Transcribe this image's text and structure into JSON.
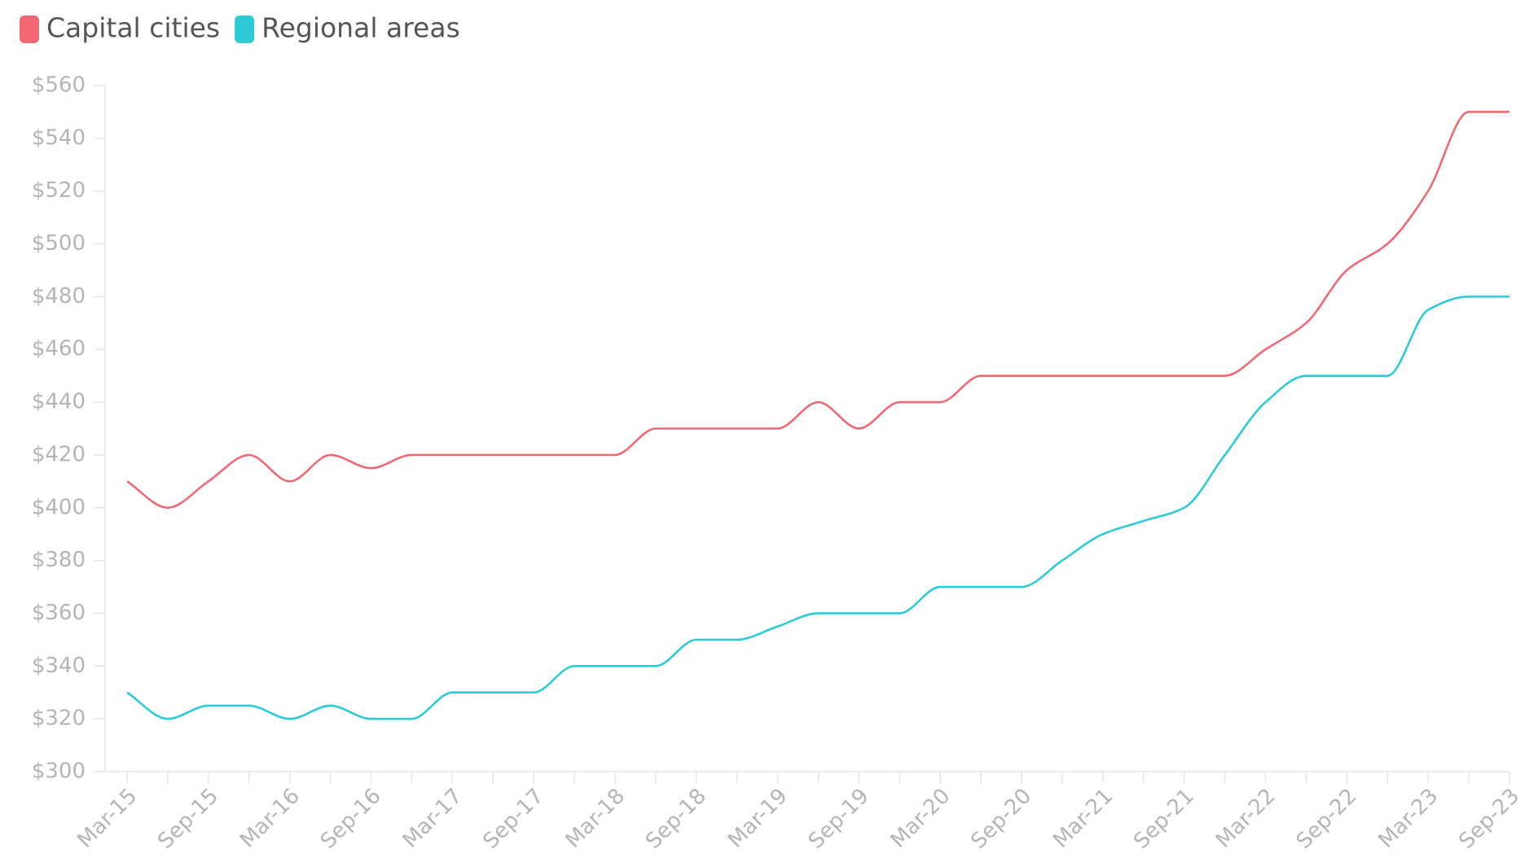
{
  "chart_data": {
    "type": "line",
    "categories": [
      "Mar-15",
      null,
      "Sep-15",
      null,
      "Mar-16",
      null,
      "Sep-16",
      null,
      "Mar-17",
      null,
      "Sep-17",
      null,
      "Mar-18",
      null,
      "Sep-18",
      null,
      "Mar-19",
      null,
      "Sep-19",
      null,
      "Mar-20",
      null,
      "Sep-20",
      null,
      "Mar-21",
      null,
      "Sep-21",
      null,
      "Mar-22",
      null,
      "Sep-22",
      null,
      "Mar-23",
      null,
      "Sep-23"
    ],
    "series": [
      {
        "name": "Capital cities",
        "color": "#f26872",
        "values": [
          410,
          400,
          410,
          420,
          410,
          420,
          415,
          420,
          420,
          420,
          420,
          420,
          420,
          430,
          430,
          430,
          430,
          440,
          430,
          440,
          440,
          450,
          450,
          450,
          450,
          450,
          450,
          450,
          460,
          470,
          490,
          500,
          520,
          550,
          550
        ]
      },
      {
        "name": "Regional areas",
        "color": "#2ccbd6",
        "values": [
          330,
          320,
          325,
          325,
          320,
          325,
          320,
          320,
          330,
          330,
          330,
          340,
          340,
          340,
          350,
          350,
          355,
          360,
          360,
          360,
          370,
          370,
          370,
          380,
          390,
          395,
          400,
          420,
          440,
          450,
          450,
          450,
          475,
          480,
          480
        ]
      }
    ],
    "ylim": [
      300,
      560
    ],
    "yticks": [
      {
        "value": 300,
        "label": "$300"
      },
      {
        "value": 320,
        "label": "$320"
      },
      {
        "value": 340,
        "label": "$340"
      },
      {
        "value": 360,
        "label": "$360"
      },
      {
        "value": 380,
        "label": "$380"
      },
      {
        "value": 400,
        "label": "$400"
      },
      {
        "value": 420,
        "label": "$420"
      },
      {
        "value": 440,
        "label": "$440"
      },
      {
        "value": 460,
        "label": "$460"
      },
      {
        "value": 480,
        "label": "$480"
      },
      {
        "value": 500,
        "label": "$500"
      },
      {
        "value": 520,
        "label": "$520"
      },
      {
        "value": 540,
        "label": "$540"
      },
      {
        "value": 560,
        "label": "$560"
      }
    ],
    "grid": false,
    "legend": "top-left"
  }
}
